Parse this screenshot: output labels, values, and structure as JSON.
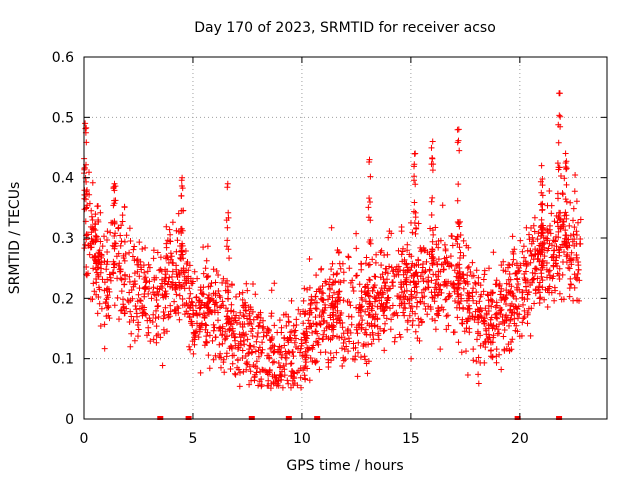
{
  "chart_data": {
    "type": "scatter",
    "title": "Day 170 of 2023, SRMTID for receiver acso",
    "xlabel": "GPS time / hours",
    "ylabel": "SRMTID / TECUs",
    "xlim": [
      0,
      24
    ],
    "ylim": [
      0,
      0.6
    ],
    "x_ticks": [
      0,
      5,
      10,
      15,
      20
    ],
    "x_tick_labels": [
      "0",
      "5",
      "10",
      "15",
      "20"
    ],
    "y_ticks": [
      0,
      0.1,
      0.2,
      0.3,
      0.4,
      0.5,
      0.6
    ],
    "y_tick_labels": [
      "0",
      "0.1",
      "0.2",
      "0.3",
      "0.4",
      "0.5",
      "0.6"
    ],
    "grid": true,
    "marker": "+",
    "color": "#ff0000",
    "trend": {
      "x": [
        0,
        0.5,
        1,
        1.5,
        2,
        2.5,
        3,
        3.5,
        4,
        4.5,
        5,
        5.5,
        6,
        6.5,
        7,
        7.5,
        8,
        8.5,
        9,
        9.5,
        10,
        10.5,
        11,
        11.5,
        12,
        12.5,
        13,
        13.5,
        14,
        14.5,
        15,
        15.5,
        16,
        16.5,
        17,
        17.5,
        18,
        18.5,
        19,
        19.5,
        20,
        20.5,
        21,
        21.5,
        22,
        22.5,
        22.8
      ],
      "y": [
        0.33,
        0.28,
        0.22,
        0.27,
        0.23,
        0.21,
        0.2,
        0.2,
        0.24,
        0.25,
        0.17,
        0.18,
        0.18,
        0.16,
        0.14,
        0.14,
        0.12,
        0.11,
        0.1,
        0.1,
        0.14,
        0.15,
        0.18,
        0.2,
        0.17,
        0.18,
        0.18,
        0.2,
        0.21,
        0.22,
        0.22,
        0.22,
        0.23,
        0.23,
        0.24,
        0.2,
        0.18,
        0.16,
        0.17,
        0.2,
        0.22,
        0.24,
        0.25,
        0.27,
        0.28,
        0.28,
        0.27
      ]
    },
    "peaks": [
      {
        "x": 0.05,
        "y": 0.49
      },
      {
        "x": 1.4,
        "y": 0.39
      },
      {
        "x": 4.5,
        "y": 0.4
      },
      {
        "x": 6.6,
        "y": 0.39
      },
      {
        "x": 13.1,
        "y": 0.43
      },
      {
        "x": 15.2,
        "y": 0.44
      },
      {
        "x": 16.0,
        "y": 0.46
      },
      {
        "x": 17.2,
        "y": 0.48
      },
      {
        "x": 21.0,
        "y": 0.42
      },
      {
        "x": 21.8,
        "y": 0.54
      },
      {
        "x": 22.1,
        "y": 0.44
      }
    ],
    "baseline_x": [
      3.5,
      4.8,
      7.7,
      9.4,
      10.7,
      19.9,
      21.8
    ],
    "point_count": 2200,
    "noise": 0.06
  }
}
